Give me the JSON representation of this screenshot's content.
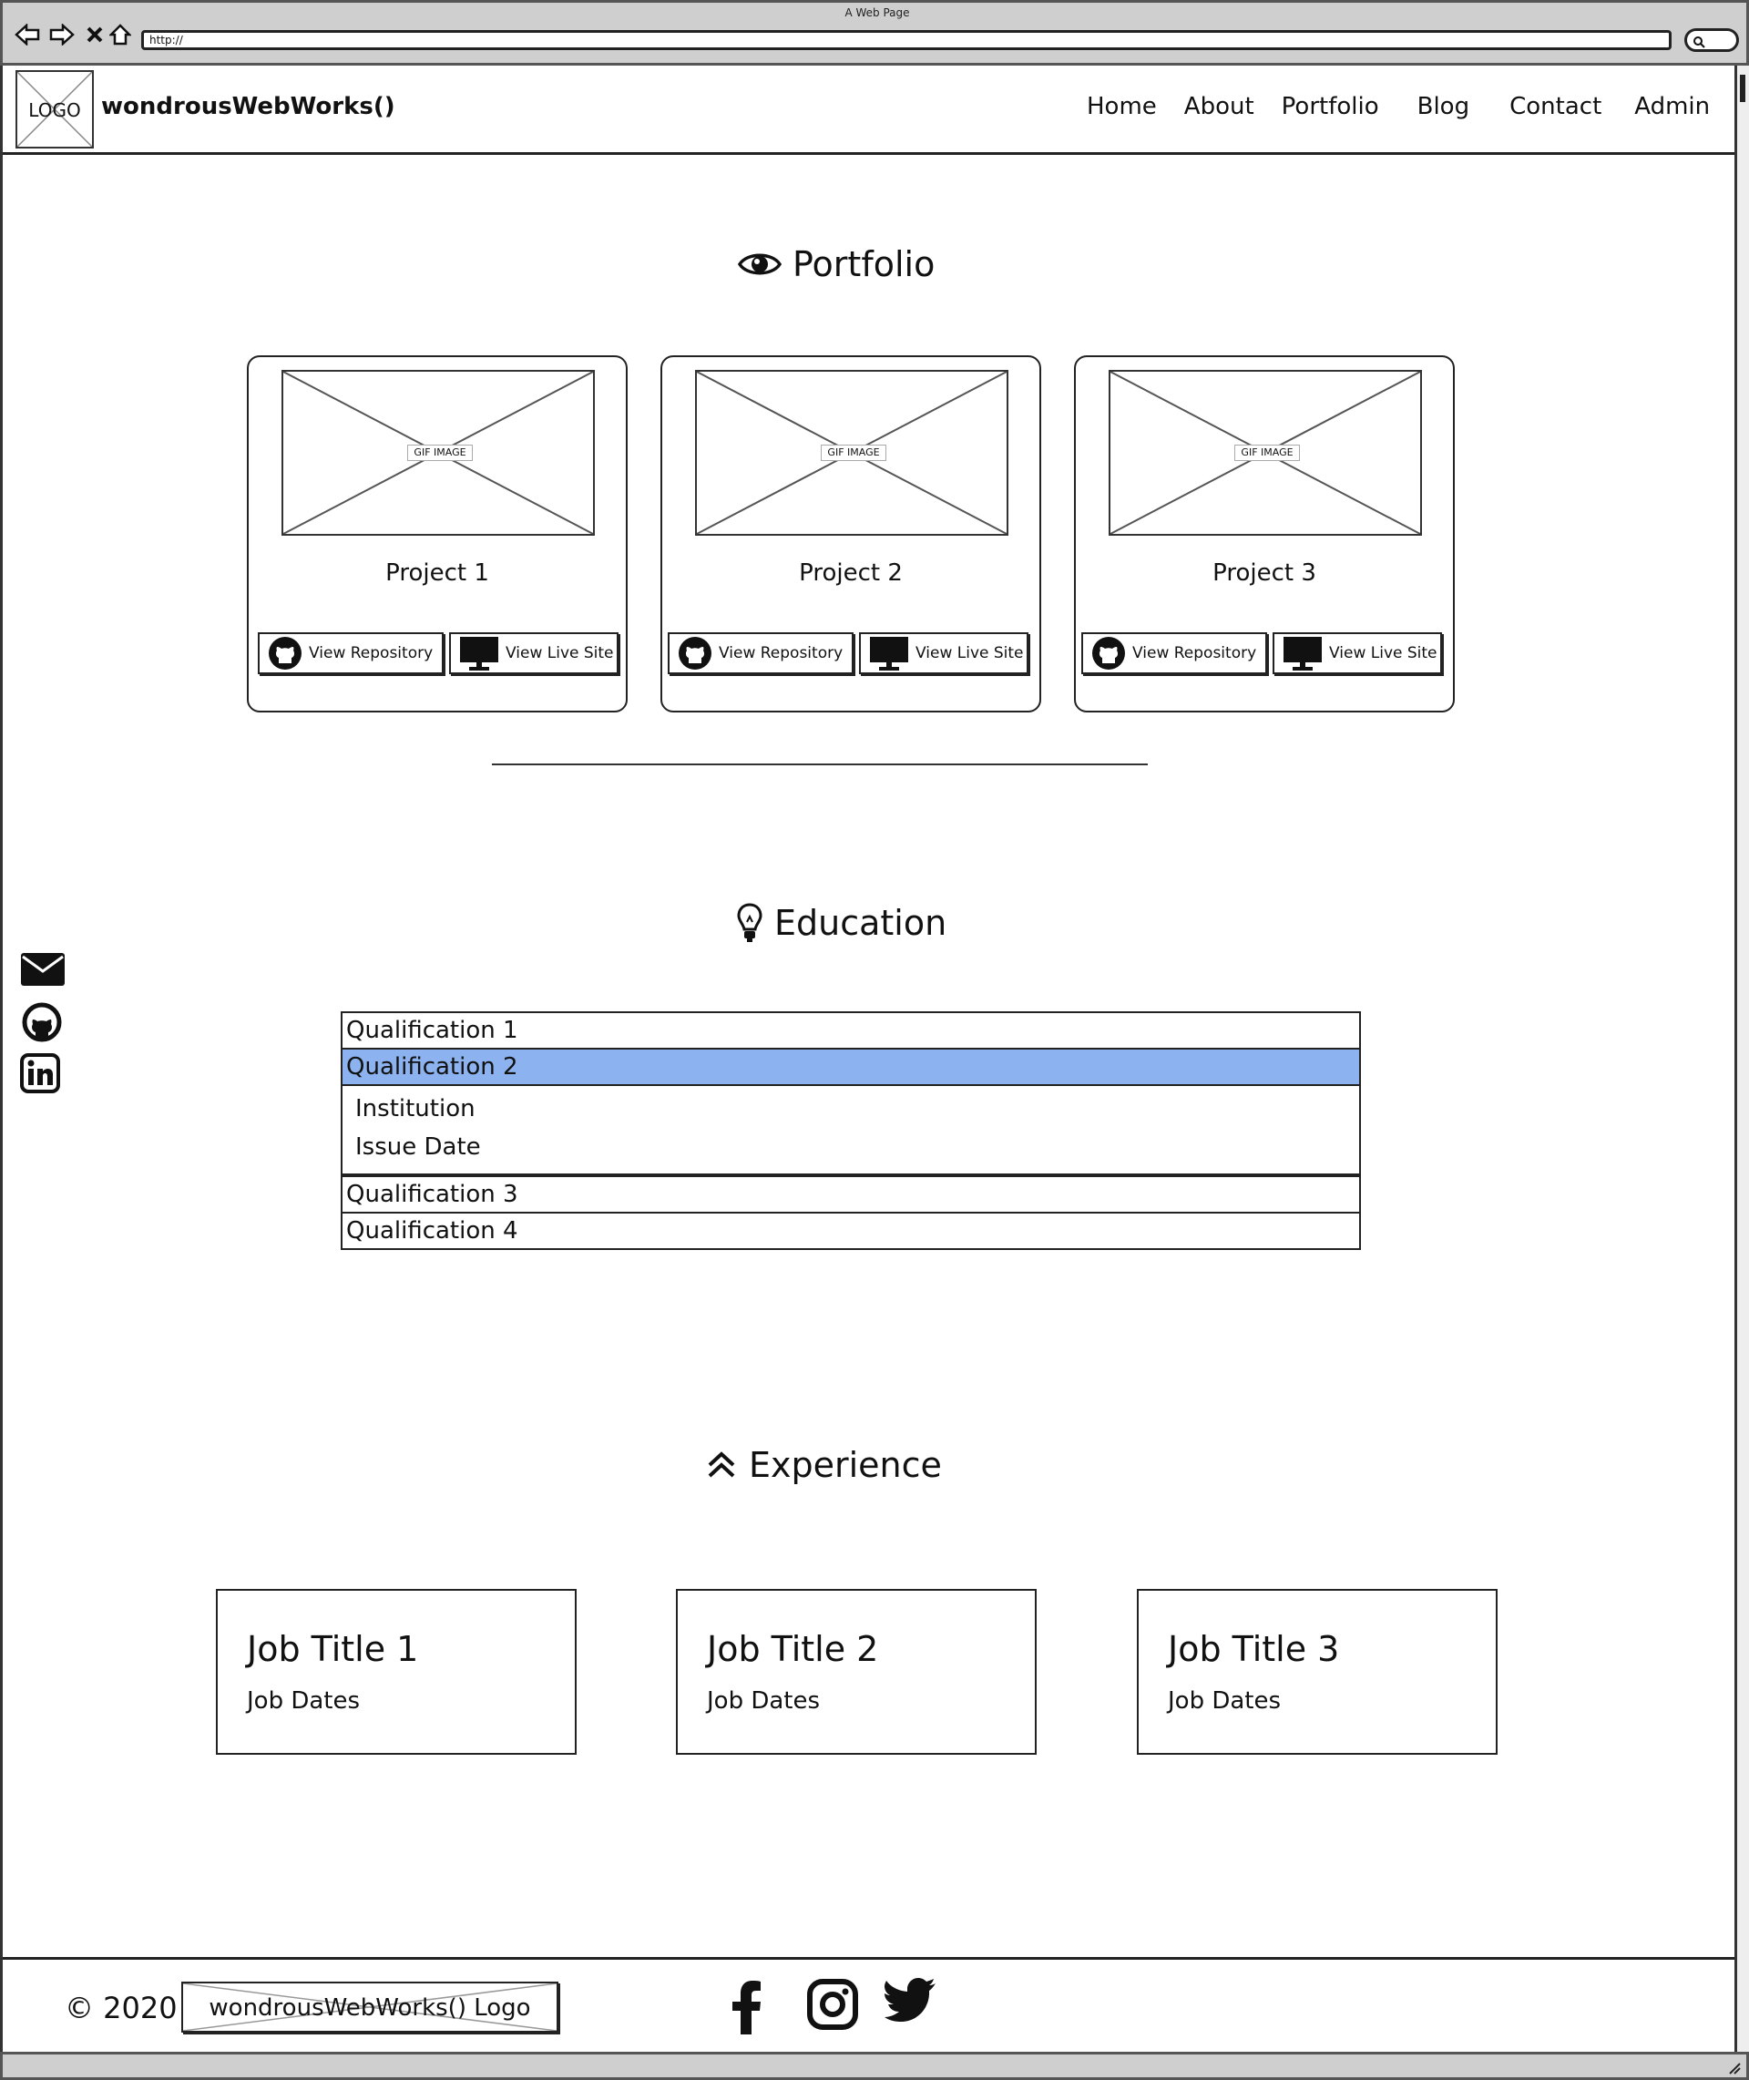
{
  "browser": {
    "window_title": "A Web Page",
    "address": "http://"
  },
  "header": {
    "logo_text": "LOGO",
    "brand": "wondrousWebWorks()",
    "nav": [
      "Home",
      "About",
      "Portfolio",
      "Blog",
      "Contact",
      "Admin"
    ]
  },
  "portfolio": {
    "heading": "Portfolio",
    "icon": "eye-icon",
    "projects": [
      {
        "image_label": "GIF IMAGE",
        "title": "Project 1",
        "repo_label": "View Repository",
        "live_label": "View Live Site"
      },
      {
        "image_label": "GIF IMAGE",
        "title": "Project 2",
        "repo_label": "View Repository",
        "live_label": "View Live Site"
      },
      {
        "image_label": "GIF IMAGE",
        "title": "Project 3",
        "repo_label": "View Repository",
        "live_label": "View Live Site"
      }
    ]
  },
  "education": {
    "heading": "Education",
    "icon": "lightbulb-icon",
    "items": [
      "Qualification 1",
      "Qualification 2",
      "Qualification 3",
      "Qualification 4"
    ],
    "selected_index": 1,
    "selected_details": [
      "Institution",
      "Issue Date"
    ],
    "highlight_color": "#8cb2ef"
  },
  "side_social": [
    "envelope-icon",
    "github-icon",
    "linkedin-icon"
  ],
  "experience": {
    "heading": "Experience",
    "icon": "double-chevron-up-icon",
    "jobs": [
      {
        "title": "Job Title 1",
        "dates": "Job Dates"
      },
      {
        "title": "Job Title 2",
        "dates": "Job Dates"
      },
      {
        "title": "Job Title 3",
        "dates": "Job Dates"
      }
    ]
  },
  "footer": {
    "copyright": "© 2020",
    "logo_text": "wondrousWebWorks() Logo",
    "social": [
      "facebook-icon",
      "instagram-icon",
      "twitter-icon"
    ]
  }
}
